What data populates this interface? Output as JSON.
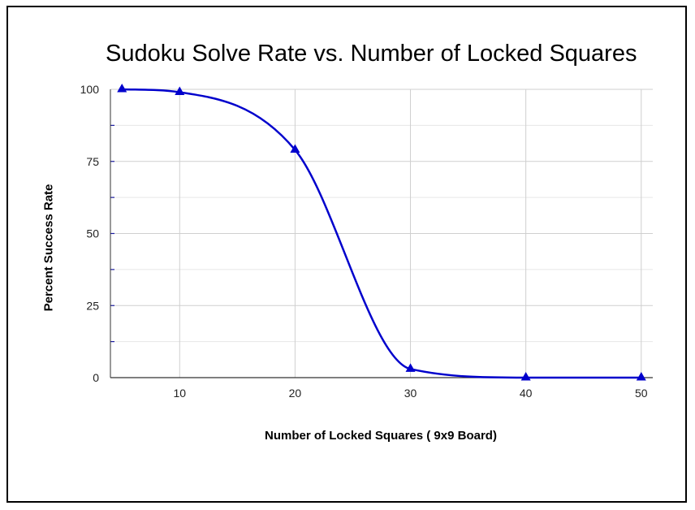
{
  "chart_data": {
    "type": "line",
    "title": "Sudoku Solve Rate vs. Number of Locked Squares",
    "xlabel": "Number of Locked Squares ( 9x9 Board)",
    "ylabel": "Percent Success Rate",
    "xlim": [
      4,
      51
    ],
    "ylim": [
      0,
      100
    ],
    "x_ticks": [
      10,
      20,
      30,
      40,
      50
    ],
    "y_ticks": [
      0,
      25,
      50,
      75,
      100
    ],
    "grid": true,
    "legend": "none",
    "marker": "triangle",
    "smooth": true,
    "series": [
      {
        "x": [
          5,
          10,
          20,
          30,
          40,
          50
        ],
        "values": [
          100,
          99,
          79,
          3,
          0,
          0
        ],
        "color": "#0000cc"
      }
    ]
  }
}
